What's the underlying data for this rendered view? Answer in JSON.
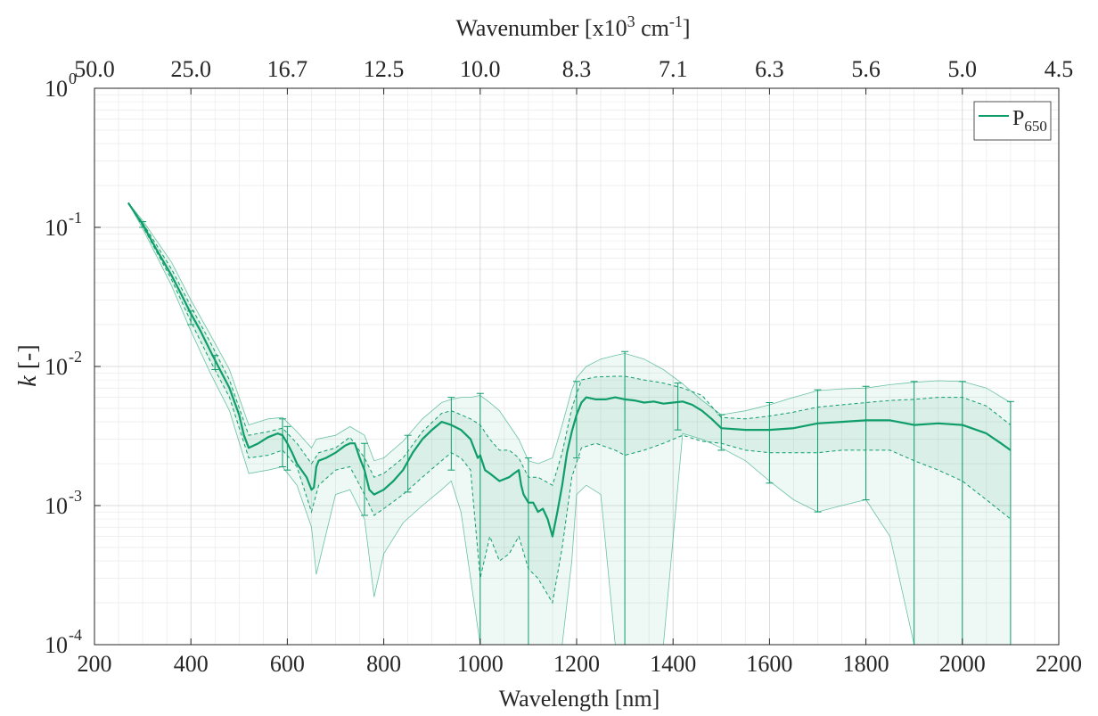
{
  "chart_data": {
    "type": "line",
    "x_axis": {
      "label": "Wavelength [nm]",
      "range": [
        200,
        2200
      ],
      "ticks": [
        200,
        400,
        600,
        800,
        1000,
        1200,
        1400,
        1600,
        1800,
        2000,
        2200
      ],
      "tick_labels": [
        "200",
        "400",
        "600",
        "800",
        "1000",
        "1200",
        "1400",
        "1600",
        "1800",
        "2000",
        "2200"
      ]
    },
    "top_axis": {
      "label_base": "Wavenumber [x10",
      "label_exp1": "3",
      "label_mid": " cm",
      "label_exp2": "-1",
      "label_end": "]",
      "tick_labels": [
        "50.0",
        "25.0",
        "16.7",
        "12.5",
        "10.0",
        "8.3",
        "7.1",
        "6.3",
        "5.6",
        "5.0",
        "4.5"
      ],
      "tick_values": [
        50.0,
        25.0,
        16.7,
        12.5,
        10.0,
        8.3,
        7.1,
        6.3,
        5.6,
        5.0,
        4.5
      ]
    },
    "y_axis": {
      "label_italic": "k",
      "label_rest": " [-]",
      "scale": "log",
      "range": [
        0.0001,
        1
      ],
      "ticks": [
        {
          "base": "10",
          "exp": "-4",
          "value": 0.0001
        },
        {
          "base": "10",
          "exp": "-3",
          "value": 0.001
        },
        {
          "base": "10",
          "exp": "-2",
          "value": 0.01
        },
        {
          "base": "10",
          "exp": "-1",
          "value": 0.1
        },
        {
          "base": "10",
          "exp": "0",
          "value": 1
        }
      ]
    },
    "grid": true,
    "legend": {
      "position": "top-right",
      "label_base": "P",
      "label_sub": "650"
    },
    "color": "#0f9d6a",
    "series": [
      {
        "name": "P650",
        "x": [
          270,
          300,
          330,
          360,
          380,
          400,
          420,
          440,
          460,
          480,
          500,
          510,
          520,
          540,
          560,
          580,
          590,
          600,
          610,
          620,
          640,
          650,
          655,
          660,
          665,
          680,
          700,
          720,
          730,
          740,
          750,
          760,
          770,
          780,
          790,
          800,
          820,
          840,
          860,
          880,
          900,
          920,
          940,
          960,
          980,
          995,
          1000,
          1010,
          1020,
          1040,
          1060,
          1070,
          1080,
          1085,
          1090,
          1100,
          1110,
          1120,
          1130,
          1140,
          1150,
          1160,
          1170,
          1180,
          1190,
          1200,
          1210,
          1220,
          1240,
          1260,
          1280,
          1300,
          1320,
          1340,
          1360,
          1380,
          1400,
          1420,
          1440,
          1460,
          1480,
          1500,
          1550,
          1600,
          1650,
          1700,
          1750,
          1800,
          1850,
          1900,
          1950,
          2000,
          2050,
          2080,
          2100
        ],
        "y": [
          0.15,
          0.105,
          0.068,
          0.045,
          0.033,
          0.024,
          0.018,
          0.013,
          0.0095,
          0.007,
          0.0045,
          0.0032,
          0.0026,
          0.0028,
          0.0031,
          0.0033,
          0.0032,
          0.0028,
          0.0024,
          0.002,
          0.0016,
          0.0013,
          0.00135,
          0.0019,
          0.0021,
          0.0022,
          0.0024,
          0.0027,
          0.0028,
          0.0028,
          0.0022,
          0.0018,
          0.0013,
          0.0012,
          0.00125,
          0.0013,
          0.0015,
          0.0018,
          0.0024,
          0.003,
          0.0035,
          0.004,
          0.0038,
          0.0035,
          0.003,
          0.0022,
          0.0023,
          0.0018,
          0.0017,
          0.0015,
          0.0016,
          0.0017,
          0.0018,
          0.0014,
          0.0012,
          0.00105,
          0.00105,
          0.0009,
          0.00095,
          0.0008,
          0.0006,
          0.0009,
          0.0014,
          0.0024,
          0.0034,
          0.0045,
          0.0055,
          0.006,
          0.0058,
          0.0058,
          0.006,
          0.0058,
          0.0057,
          0.0055,
          0.0056,
          0.0054,
          0.0055,
          0.0056,
          0.0053,
          0.0048,
          0.0042,
          0.0036,
          0.0035,
          0.0035,
          0.0036,
          0.0039,
          0.004,
          0.0041,
          0.0041,
          0.0038,
          0.0039,
          0.0038,
          0.0033,
          0.0028,
          0.0025
        ]
      }
    ],
    "band_dashed": {
      "x": [
        270,
        300,
        360,
        400,
        440,
        480,
        520,
        560,
        590,
        620,
        650,
        665,
        700,
        730,
        760,
        780,
        800,
        840,
        880,
        920,
        940,
        960,
        980,
        1000,
        1020,
        1040,
        1060,
        1080,
        1100,
        1120,
        1150,
        1170,
        1190,
        1210,
        1240,
        1280,
        1300,
        1340,
        1380,
        1420,
        1460,
        1500,
        1550,
        1600,
        1650,
        1700,
        1750,
        1800,
        1850,
        1900,
        1950,
        2000,
        2050,
        2100
      ],
      "upper": [
        0.15,
        0.108,
        0.05,
        0.027,
        0.015,
        0.008,
        0.0032,
        0.0034,
        0.0036,
        0.0028,
        0.002,
        0.0024,
        0.0026,
        0.0031,
        0.0022,
        0.0016,
        0.0017,
        0.0022,
        0.0034,
        0.0046,
        0.0048,
        0.0045,
        0.0042,
        0.0038,
        0.003,
        0.0025,
        0.0025,
        0.0022,
        0.0016,
        0.0016,
        0.0014,
        0.0024,
        0.005,
        0.008,
        0.0084,
        0.0085,
        0.0085,
        0.008,
        0.0076,
        0.007,
        0.0062,
        0.0043,
        0.0042,
        0.0044,
        0.0047,
        0.0051,
        0.0053,
        0.0055,
        0.0057,
        0.0058,
        0.006,
        0.006,
        0.0052,
        0.0038
      ],
      "lower": [
        0.15,
        0.102,
        0.042,
        0.021,
        0.011,
        0.006,
        0.0022,
        0.0023,
        0.0025,
        0.0019,
        0.0009,
        0.0014,
        0.0018,
        0.0019,
        0.0012,
        0.00085,
        0.00095,
        0.0012,
        0.0016,
        0.0021,
        0.0024,
        0.0022,
        0.0018,
        0.0003,
        0.0006,
        0.0004,
        0.00045,
        0.0006,
        0.00035,
        0.0003,
        0.0002,
        0.0005,
        0.0016,
        0.0026,
        0.0028,
        0.0025,
        0.0023,
        0.0025,
        0.0028,
        0.0032,
        0.0029,
        0.0028,
        0.0025,
        0.0024,
        0.0024,
        0.0024,
        0.0025,
        0.0025,
        0.0025,
        0.0021,
        0.0018,
        0.0015,
        0.0011,
        0.0008
      ]
    },
    "band_outer": {
      "x": [
        270,
        300,
        360,
        400,
        440,
        480,
        520,
        560,
        590,
        620,
        650,
        660,
        700,
        730,
        760,
        780,
        800,
        840,
        880,
        920,
        940,
        960,
        980,
        1000,
        1020,
        1040,
        1060,
        1080,
        1100,
        1120,
        1150,
        1170,
        1190,
        1200,
        1220,
        1250,
        1280,
        1300,
        1340,
        1380,
        1420,
        1460,
        1500,
        1550,
        1600,
        1650,
        1700,
        1750,
        1800,
        1850,
        1900,
        1950,
        2000,
        2050,
        2100
      ],
      "upper": [
        0.15,
        0.112,
        0.056,
        0.03,
        0.017,
        0.0095,
        0.0038,
        0.0042,
        0.0043,
        0.0034,
        0.0026,
        0.003,
        0.0032,
        0.0037,
        0.0032,
        0.0021,
        0.0022,
        0.0029,
        0.0042,
        0.0055,
        0.0058,
        0.006,
        0.006,
        0.0062,
        0.0055,
        0.0048,
        0.0038,
        0.003,
        0.0021,
        0.002,
        0.0022,
        0.0038,
        0.0068,
        0.0083,
        0.01,
        0.0113,
        0.012,
        0.0124,
        0.0113,
        0.0095,
        0.0075,
        0.0057,
        0.0045,
        0.0048,
        0.0053,
        0.006,
        0.0067,
        0.0069,
        0.007,
        0.0074,
        0.0077,
        0.0079,
        0.0078,
        0.007,
        0.0055
      ],
      "lower": [
        0.15,
        0.098,
        0.038,
        0.018,
        0.009,
        0.0048,
        0.0017,
        0.0018,
        0.0019,
        0.0014,
        0.0007,
        0.00032,
        0.0012,
        0.0013,
        0.0008,
        0.00022,
        0.00045,
        0.00075,
        0.001,
        0.0013,
        0.0015,
        0.0009,
        0.0003,
        0.0001,
        0.0001,
        0.0001,
        0.0001,
        0.0001,
        0.0001,
        0.0001,
        0.0001,
        0.0001,
        0.0004,
        0.0012,
        0.0014,
        0.0012,
        0.0001,
        0.0001,
        0.0001,
        0.0001,
        0.0033,
        0.003,
        0.0026,
        0.0021,
        0.0015,
        0.0011,
        0.0009,
        0.001,
        0.0011,
        0.0006,
        0.0001,
        0.0001,
        0.0001,
        0.0001,
        0.0001
      ]
    },
    "error_bars": [
      {
        "x": 300,
        "lo": 0.1,
        "hi": 0.11
      },
      {
        "x": 400,
        "lo": 0.02,
        "hi": 0.025
      },
      {
        "x": 450,
        "lo": 0.0095,
        "hi": 0.012
      },
      {
        "x": 590,
        "lo": 0.0019,
        "hi": 0.0042
      },
      {
        "x": 600,
        "lo": 0.0018,
        "hi": 0.0037
      },
      {
        "x": 760,
        "lo": 0.00085,
        "hi": 0.0028
      },
      {
        "x": 850,
        "lo": 0.00125,
        "hi": 0.0032
      },
      {
        "x": 940,
        "lo": 0.0018,
        "hi": 0.006
      },
      {
        "x": 1000,
        "lo": 0.0001,
        "hi": 0.0064
      },
      {
        "x": 1100,
        "lo": 0.0001,
        "hi": 0.0022
      },
      {
        "x": 1200,
        "lo": 0.0022,
        "hi": 0.0078
      },
      {
        "x": 1300,
        "lo": 0.0001,
        "hi": 0.0128
      },
      {
        "x": 1410,
        "lo": 0.0035,
        "hi": 0.0076
      },
      {
        "x": 1500,
        "lo": 0.0025,
        "hi": 0.0045
      },
      {
        "x": 1600,
        "lo": 0.00145,
        "hi": 0.0055
      },
      {
        "x": 1700,
        "lo": 0.0009,
        "hi": 0.0068
      },
      {
        "x": 1800,
        "lo": 0.0011,
        "hi": 0.0072
      },
      {
        "x": 1900,
        "lo": 0.0001,
        "hi": 0.0078
      },
      {
        "x": 2000,
        "lo": 0.0001,
        "hi": 0.0078
      },
      {
        "x": 2100,
        "lo": 0.0001,
        "hi": 0.0056
      }
    ]
  }
}
